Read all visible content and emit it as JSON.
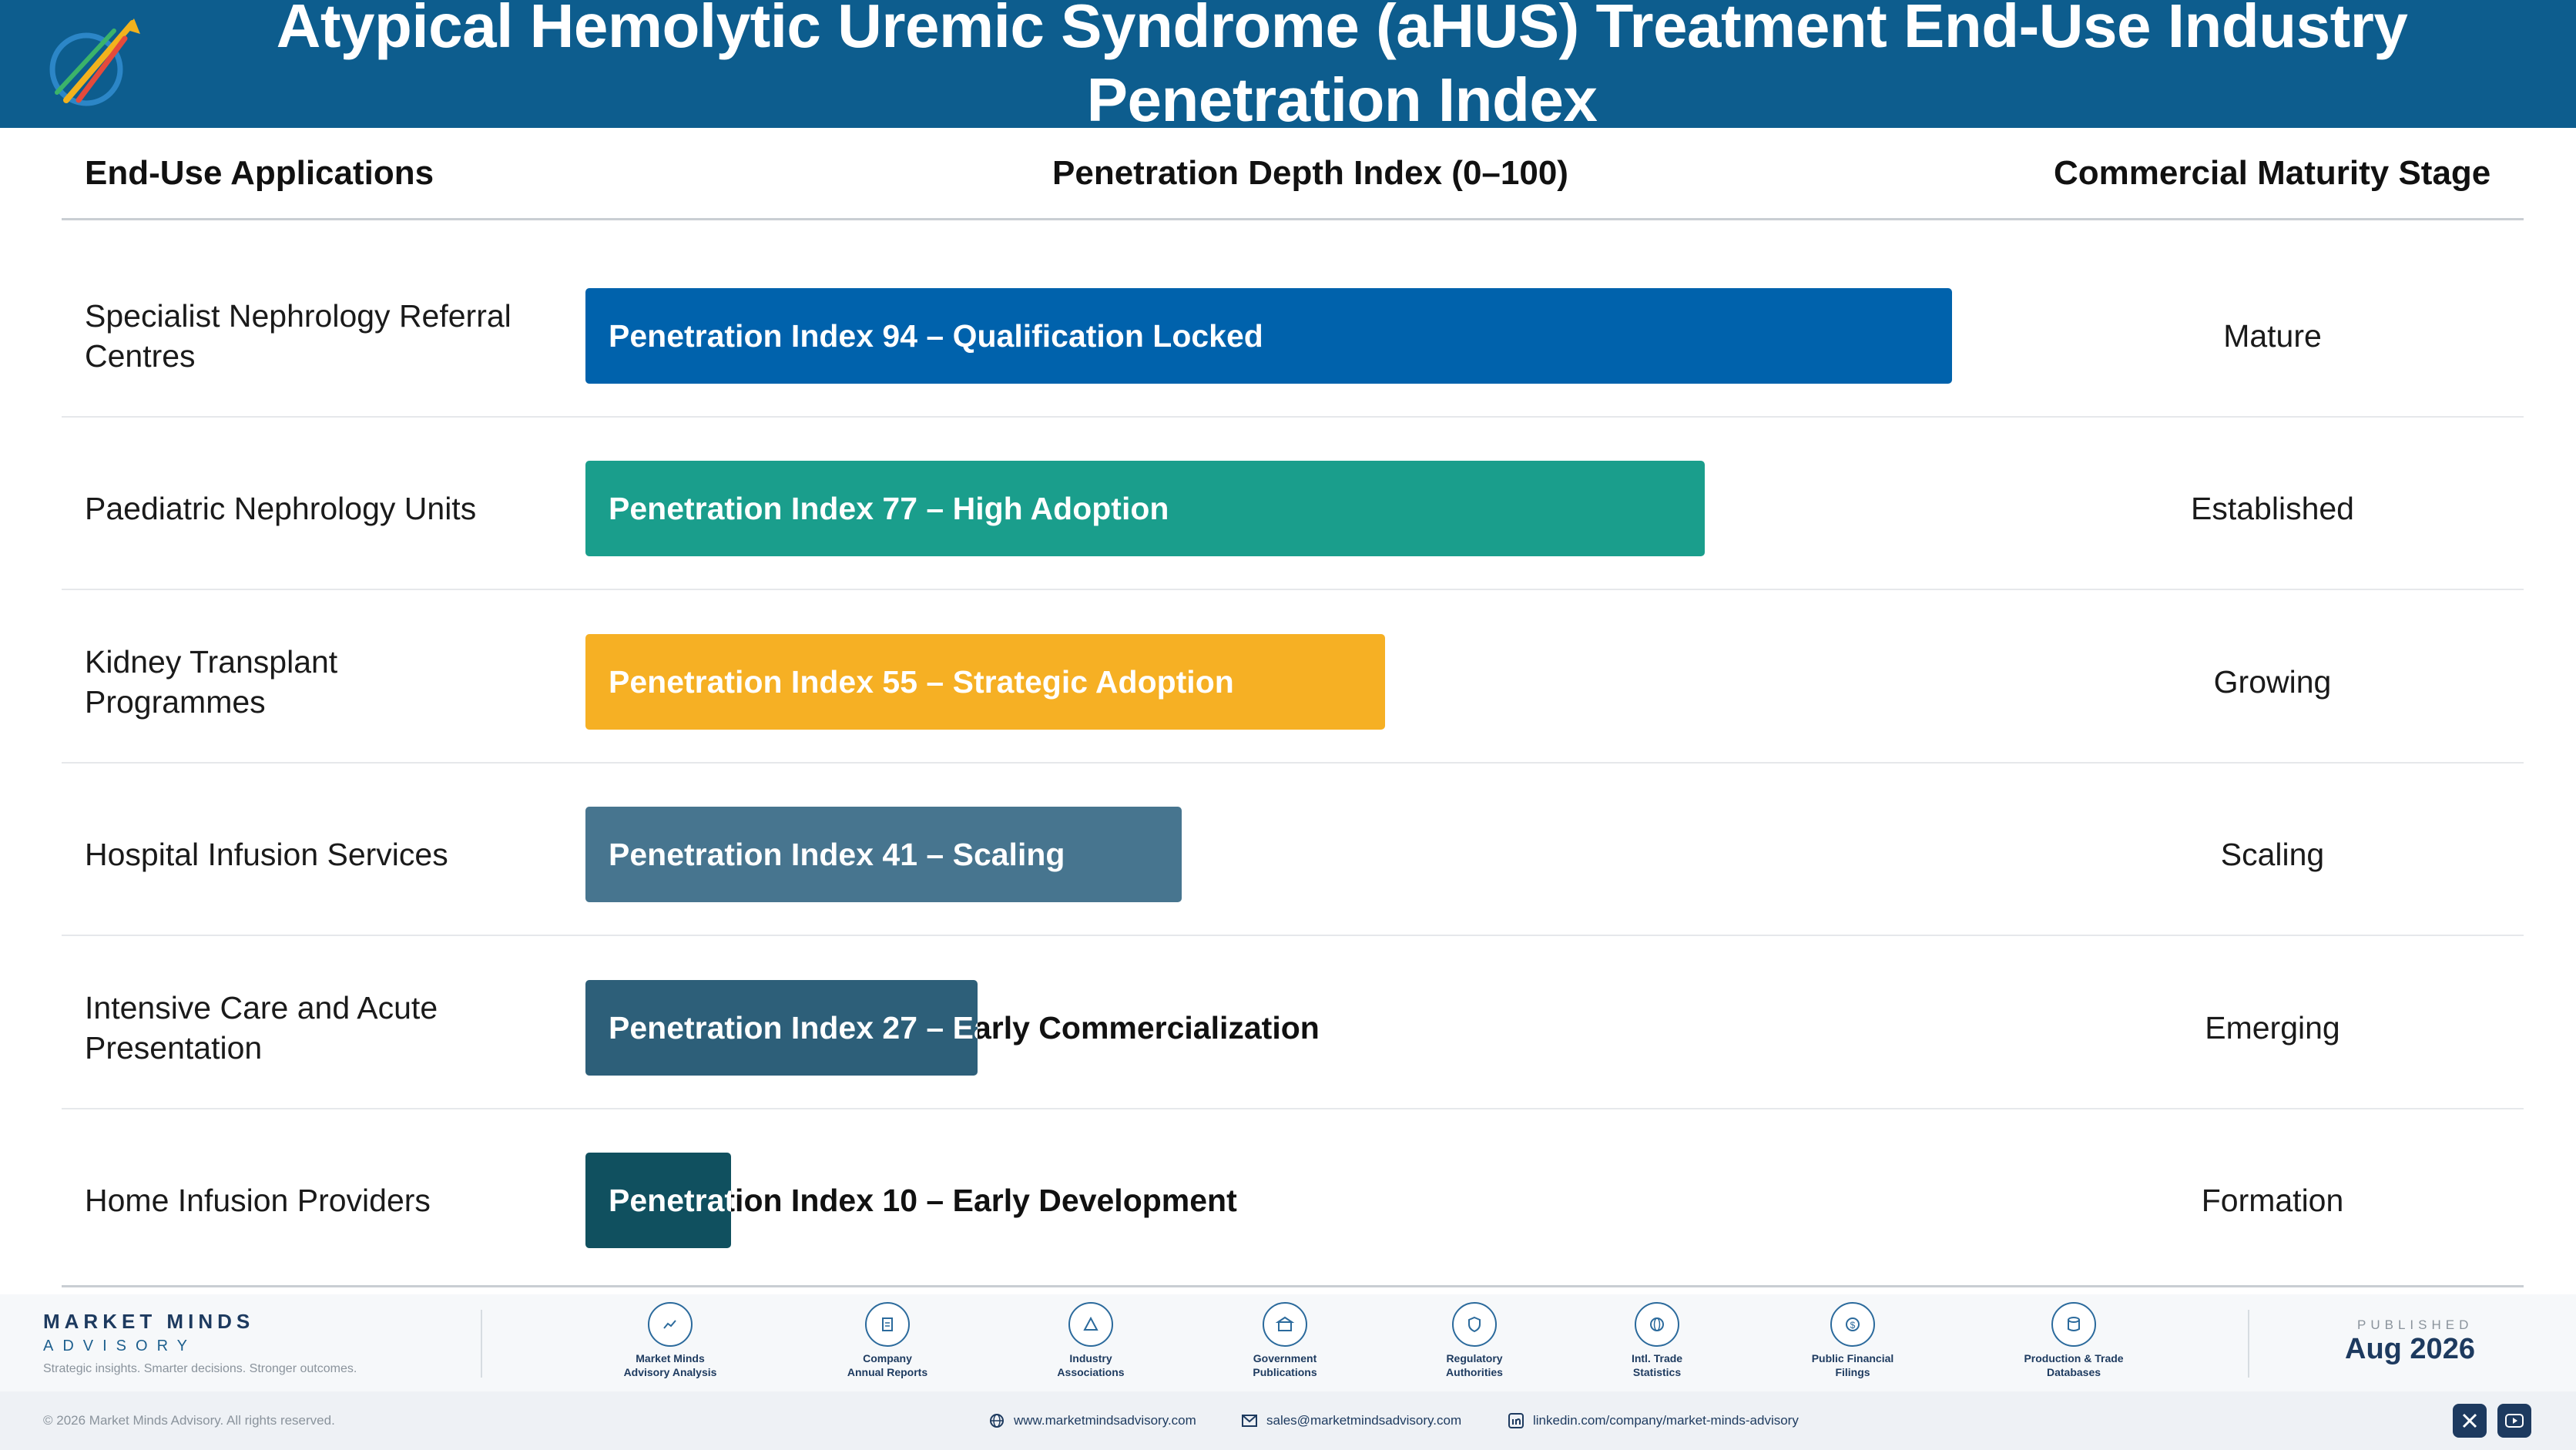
{
  "title": "Atypical Hemolytic Uremic Syndrome (aHUS) Treatment End-Use Industry Penetration Index",
  "columns": {
    "applications": "End-Use Applications",
    "index": "Penetration Depth Index (0–100)",
    "stage": "Commercial Maturity Stage"
  },
  "chart_data": {
    "type": "bar",
    "orientation": "horizontal",
    "xlim": [
      0,
      100
    ],
    "categories": [
      "Specialist Nephrology Referral Centres",
      "Paediatric Nephrology Units",
      "Kidney Transplant Programmes",
      "Hospital Infusion Services",
      "Intensive Care and Acute Presentation",
      "Home Infusion Providers"
    ],
    "values": [
      94,
      77,
      55,
      41,
      27,
      10
    ],
    "bar_labels": [
      "Penetration Index 94 – Qualification Locked",
      "Penetration Index 77 – High Adoption",
      "Penetration Index 55 – Strategic Adoption",
      "Penetration Index 41 – Scaling",
      "Penetration Index 27 – Early Commercialization",
      "Penetration Index 10 – Early Development"
    ],
    "stages": [
      "Mature",
      "Established",
      "Growing",
      "Scaling",
      "Emerging",
      "Formation"
    ],
    "colors": [
      "#0062ac",
      "#1a9e8c",
      "#f6b024",
      "#47758f",
      "#2d5f79",
      "#10505f"
    ]
  },
  "footer": {
    "brand_name": "MARKET MINDS",
    "brand_sub": "ADVISORY",
    "tagline": "Strategic insights. Smarter decisions. Stronger outcomes.",
    "sources": [
      {
        "line1": "Market Minds",
        "line2": "Advisory Analysis",
        "icon": "chart-line-icon"
      },
      {
        "line1": "Company",
        "line2": "Annual Reports",
        "icon": "document-icon"
      },
      {
        "line1": "Industry",
        "line2": "Associations",
        "icon": "network-icon"
      },
      {
        "line1": "Government",
        "line2": "Publications",
        "icon": "building-icon"
      },
      {
        "line1": "Regulatory",
        "line2": "Authorities",
        "icon": "shield-icon"
      },
      {
        "line1": "Intl. Trade",
        "line2": "Statistics",
        "icon": "globe-icon"
      },
      {
        "line1": "Public Financial",
        "line2": "Filings",
        "icon": "dollar-icon"
      },
      {
        "line1": "Production & Trade",
        "line2": "Databases",
        "icon": "database-icon"
      }
    ],
    "published_label": "PUBLISHED",
    "published_date": "Aug 2026",
    "copyright": "© 2026 Market Minds Advisory. All rights reserved.",
    "website": "www.marketmindsadvisory.com",
    "email": "sales@marketmindsadvisory.com",
    "linkedin": "linkedin.com/company/market-minds-advisory"
  }
}
